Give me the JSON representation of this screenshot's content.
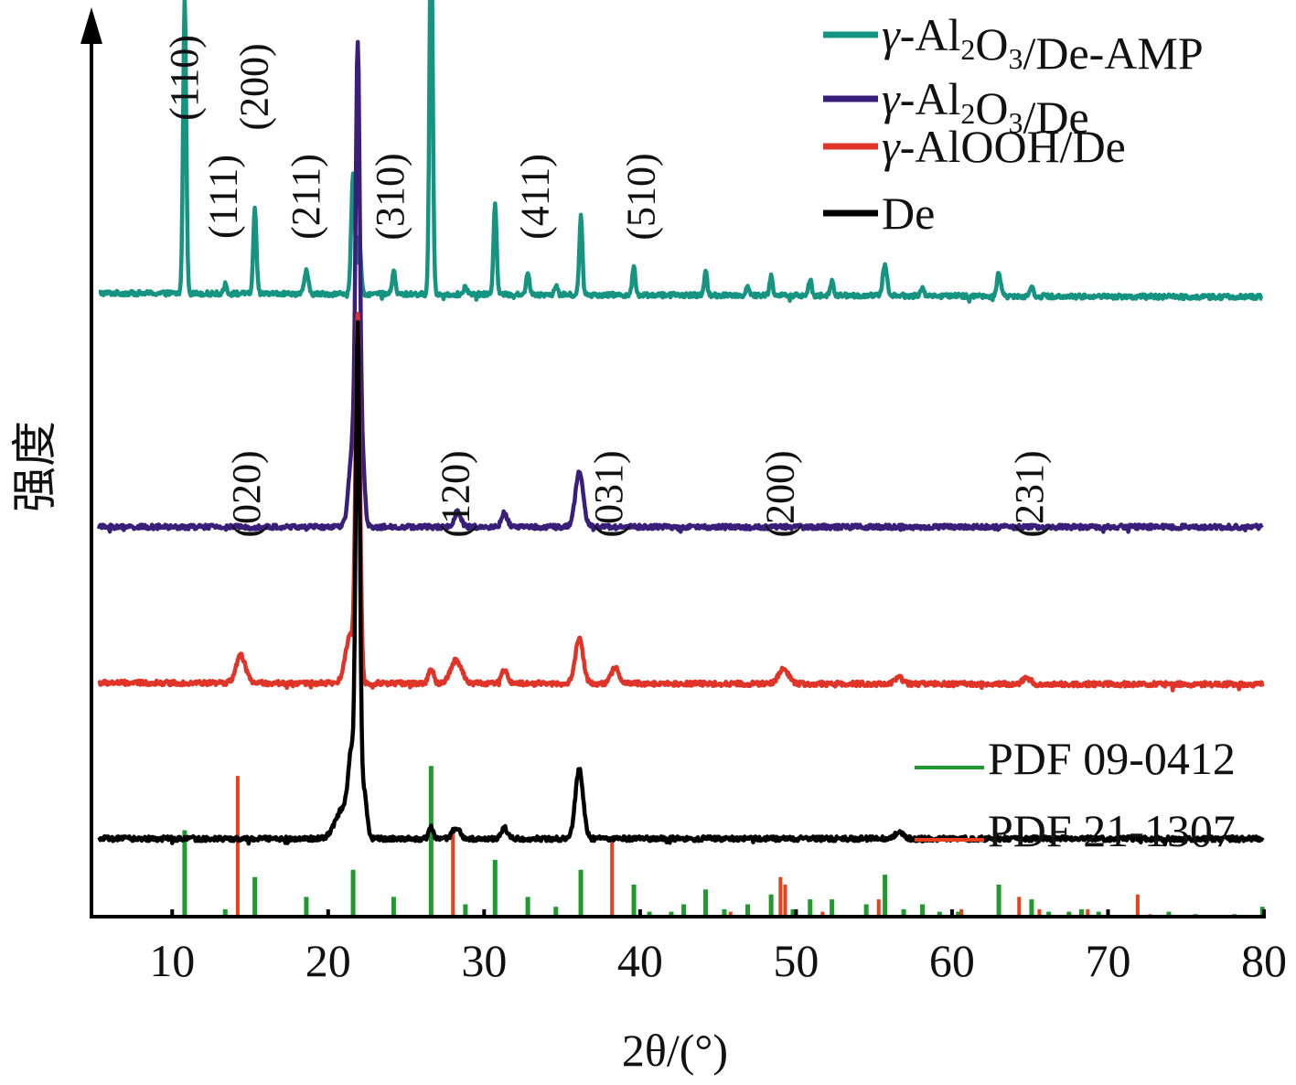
{
  "chart_data": {
    "type": "line",
    "xlabel": "2θ/(°)",
    "ylabel": "强度",
    "xlim": [
      5,
      80
    ],
    "x_ticks": [
      "10",
      "20",
      "30",
      "40",
      "50",
      "60",
      "70",
      "80"
    ],
    "x_tick_values": [
      10,
      20,
      30,
      40,
      50,
      60,
      70,
      80
    ],
    "y_ticks": false,
    "grid": false,
    "legend_top": {
      "placement": "top-right",
      "entries": [
        {
          "prefix": "γ-Al",
          "sub1": "2",
          "mid": "O",
          "sub2": "3",
          "suffix": "/De-AMP",
          "color": "#169482"
        },
        {
          "prefix": "γ-Al",
          "sub1": "2",
          "mid": "O",
          "sub2": "3",
          "suffix": "/De",
          "color": "#3a1f7a"
        },
        {
          "prefix": "γ-AlOOH/De",
          "sub1": "",
          "mid": "",
          "sub2": "",
          "suffix": "",
          "color": "#e03428"
        },
        {
          "prefix": "De",
          "sub1": "",
          "mid": "",
          "sub2": "",
          "suffix": "",
          "color": "#000000"
        }
      ]
    },
    "legend_bottom": {
      "placement": "bottom-right",
      "entries": [
        {
          "label": "PDF 09-0412",
          "color": "#1e9a2e"
        },
        {
          "label": "PDF 21-1307",
          "color": "#e8401a"
        }
      ]
    },
    "series": [
      {
        "name": "γ-Al2O3/De-AMP",
        "color": "#169482",
        "baseline": 0.8,
        "slope": -0.005,
        "peaks": [
          {
            "x": 10.8,
            "h": 0.378,
            "w": 0.1
          },
          {
            "x": 13.4,
            "h": 0.012,
            "w": 0.1
          },
          {
            "x": 15.3,
            "h": 0.108,
            "w": 0.1
          },
          {
            "x": 18.6,
            "h": 0.03,
            "w": 0.12
          },
          {
            "x": 21.6,
            "h": 0.152,
            "w": 0.12
          },
          {
            "x": 22.0,
            "h": 0.07,
            "w": 0.1
          },
          {
            "x": 24.2,
            "h": 0.03,
            "w": 0.1
          },
          {
            "x": 26.6,
            "h": 0.498,
            "w": 0.1
          },
          {
            "x": 28.8,
            "h": 0.012,
            "w": 0.1
          },
          {
            "x": 30.7,
            "h": 0.118,
            "w": 0.1
          },
          {
            "x": 32.8,
            "h": 0.03,
            "w": 0.1
          },
          {
            "x": 34.6,
            "h": 0.012,
            "w": 0.1
          },
          {
            "x": 36.2,
            "h": 0.1,
            "w": 0.1
          },
          {
            "x": 39.6,
            "h": 0.036,
            "w": 0.1
          },
          {
            "x": 44.2,
            "h": 0.03,
            "w": 0.1
          },
          {
            "x": 46.9,
            "h": 0.012,
            "w": 0.1
          },
          {
            "x": 48.4,
            "h": 0.025,
            "w": 0.1
          },
          {
            "x": 50.9,
            "h": 0.02,
            "w": 0.1
          },
          {
            "x": 52.3,
            "h": 0.018,
            "w": 0.1
          },
          {
            "x": 55.7,
            "h": 0.04,
            "w": 0.14
          },
          {
            "x": 58.1,
            "h": 0.012,
            "w": 0.1
          },
          {
            "x": 63.0,
            "h": 0.03,
            "w": 0.12
          },
          {
            "x": 65.1,
            "h": 0.015,
            "w": 0.1
          }
        ]
      },
      {
        "name": "γ-Al2O3/De",
        "color": "#3a1f7a",
        "baseline": 0.5,
        "slope": 0.0,
        "peaks": [
          {
            "x": 21.6,
            "h": 0.11,
            "w": 0.25
          },
          {
            "x": 21.9,
            "h": 0.56,
            "w": 0.13
          },
          {
            "x": 22.2,
            "h": 0.08,
            "w": 0.15
          },
          {
            "x": 28.3,
            "h": 0.02,
            "w": 0.2
          },
          {
            "x": 31.3,
            "h": 0.018,
            "w": 0.18
          },
          {
            "x": 36.1,
            "h": 0.07,
            "w": 0.25
          }
        ]
      },
      {
        "name": "γ-AlOOH/De",
        "color": "#e03428",
        "baseline": 0.3,
        "slope": -0.002,
        "peaks": [
          {
            "x": 14.4,
            "h": 0.035,
            "w": 0.3
          },
          {
            "x": 21.4,
            "h": 0.06,
            "w": 0.3
          },
          {
            "x": 21.9,
            "h": 0.46,
            "w": 0.14
          },
          {
            "x": 26.6,
            "h": 0.02,
            "w": 0.15
          },
          {
            "x": 28.2,
            "h": 0.03,
            "w": 0.35
          },
          {
            "x": 31.3,
            "h": 0.018,
            "w": 0.18
          },
          {
            "x": 36.1,
            "h": 0.058,
            "w": 0.25
          },
          {
            "x": 38.4,
            "h": 0.02,
            "w": 0.25
          },
          {
            "x": 49.2,
            "h": 0.02,
            "w": 0.3
          },
          {
            "x": 56.6,
            "h": 0.008,
            "w": 0.25
          },
          {
            "x": 64.8,
            "h": 0.008,
            "w": 0.25
          }
        ]
      },
      {
        "name": "De",
        "color": "#000000",
        "baseline": 0.1,
        "slope": 0.0,
        "peaks": [
          {
            "x": 21.0,
            "h": 0.04,
            "w": 0.5
          },
          {
            "x": 21.5,
            "h": 0.09,
            "w": 0.2
          },
          {
            "x": 21.9,
            "h": 0.64,
            "w": 0.13
          },
          {
            "x": 22.3,
            "h": 0.06,
            "w": 0.18
          },
          {
            "x": 26.6,
            "h": 0.014,
            "w": 0.15
          },
          {
            "x": 28.2,
            "h": 0.014,
            "w": 0.25
          },
          {
            "x": 31.3,
            "h": 0.014,
            "w": 0.2
          },
          {
            "x": 36.1,
            "h": 0.09,
            "w": 0.25
          },
          {
            "x": 56.6,
            "h": 0.008,
            "w": 0.25
          }
        ]
      }
    ],
    "reference_patterns": [
      {
        "name": "PDF 09-0412",
        "color": "#1e9a2e",
        "sticks": [
          [
            10.8,
            0.35
          ],
          [
            13.4,
            0.03
          ],
          [
            15.3,
            0.16
          ],
          [
            18.6,
            0.08
          ],
          [
            21.6,
            0.19
          ],
          [
            24.2,
            0.08
          ],
          [
            26.6,
            0.61
          ],
          [
            28.8,
            0.05
          ],
          [
            30.7,
            0.23
          ],
          [
            32.8,
            0.08
          ],
          [
            34.6,
            0.04
          ],
          [
            36.2,
            0.19
          ],
          [
            39.6,
            0.13
          ],
          [
            40.6,
            0.02
          ],
          [
            42.0,
            0.02
          ],
          [
            42.8,
            0.05
          ],
          [
            44.2,
            0.11
          ],
          [
            45.4,
            0.03
          ],
          [
            46.9,
            0.05
          ],
          [
            48.4,
            0.09
          ],
          [
            49.8,
            0.03
          ],
          [
            50.9,
            0.07
          ],
          [
            52.3,
            0.07
          ],
          [
            54.5,
            0.05
          ],
          [
            55.7,
            0.17
          ],
          [
            56.9,
            0.03
          ],
          [
            58.1,
            0.05
          ],
          [
            59.2,
            0.02
          ],
          [
            60.4,
            0.02
          ],
          [
            63.0,
            0.13
          ],
          [
            65.1,
            0.07
          ],
          [
            66.2,
            0.02
          ],
          [
            67.5,
            0.02
          ],
          [
            68.3,
            0.03
          ],
          [
            69.4,
            0.02
          ],
          [
            73.9,
            0.02
          ],
          [
            75.6,
            0.01
          ],
          [
            78.1,
            0.01
          ],
          [
            79.9,
            0.04
          ]
        ]
      },
      {
        "name": "PDF 21-1307",
        "color": "#e8401a",
        "sticks": [
          [
            14.2,
            0.57
          ],
          [
            28.0,
            0.36
          ],
          [
            38.2,
            0.32
          ],
          [
            45.8,
            0.02
          ],
          [
            49.0,
            0.16
          ],
          [
            49.3,
            0.13
          ],
          [
            51.7,
            0.02
          ],
          [
            55.3,
            0.07
          ],
          [
            60.6,
            0.03
          ],
          [
            64.3,
            0.08
          ],
          [
            65.6,
            0.03
          ],
          [
            68.7,
            0.03
          ],
          [
            71.9,
            0.09
          ],
          [
            72.7,
            0.01
          ]
        ]
      }
    ],
    "annotations": [
      {
        "text": "(110)",
        "x": 10.8,
        "level": "upper"
      },
      {
        "text": "(111)",
        "x": 13.3,
        "level": "upper"
      },
      {
        "text": "(200)",
        "x": 15.3,
        "level": "upper"
      },
      {
        "text": "(211)",
        "x": 18.6,
        "level": "upper"
      },
      {
        "text": "(310)",
        "x": 24.0,
        "level": "upper"
      },
      {
        "text": "(411)",
        "x": 33.3,
        "level": "upper"
      },
      {
        "text": "(510)",
        "x": 40.1,
        "level": "upper"
      },
      {
        "text": "(020)",
        "x": 14.8,
        "level": "lower"
      },
      {
        "text": "(120)",
        "x": 28.2,
        "level": "lower"
      },
      {
        "text": "(031)",
        "x": 38.0,
        "level": "lower"
      },
      {
        "text": "(200)",
        "x": 49.0,
        "level": "lower"
      },
      {
        "text": "(231)",
        "x": 65.0,
        "level": "lower"
      }
    ]
  }
}
